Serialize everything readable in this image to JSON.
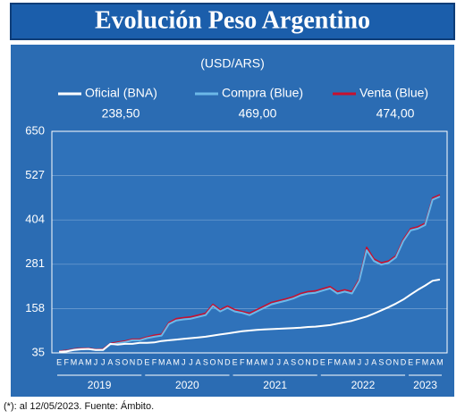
{
  "chart_data": {
    "type": "line",
    "title": "Evolución Peso Argentino",
    "subtitle": "(USD/ARS)",
    "footnote": "(*): al 12/05/2023. Fuente: Ámbito.",
    "periods": [
      {
        "year": "2019",
        "months": [
          "E",
          "F",
          "M",
          "A",
          "M",
          "J",
          "J",
          "A",
          "S",
          "O",
          "N",
          "D"
        ]
      },
      {
        "year": "2020",
        "months": [
          "E",
          "F",
          "M",
          "A",
          "M",
          "J",
          "J",
          "A",
          "S",
          "O",
          "N",
          "D"
        ]
      },
      {
        "year": "2021",
        "months": [
          "E",
          "F",
          "M",
          "A",
          "M",
          "J",
          "J",
          "A",
          "S",
          "O",
          "N",
          "D"
        ]
      },
      {
        "year": "2022",
        "months": [
          "E",
          "F",
          "M",
          "A",
          "M",
          "J",
          "J",
          "A",
          "S",
          "O",
          "N",
          "D"
        ]
      },
      {
        "year": "2023",
        "months": [
          "E",
          "F",
          "M",
          "A",
          "M"
        ]
      }
    ],
    "series": [
      {
        "name": "Oficial (BNA)",
        "latest": "238,50",
        "color": "#ffffff",
        "values": [
          38,
          39,
          43,
          45,
          46,
          43,
          43,
          60,
          58,
          60,
          60,
          63,
          63,
          64,
          68,
          70,
          72,
          74,
          76,
          78,
          80,
          83,
          86,
          89,
          92,
          95,
          97,
          99,
          100,
          101,
          102,
          103,
          104,
          105,
          107,
          108,
          110,
          112,
          116,
          120,
          124,
          130,
          136,
          144,
          153,
          162,
          172,
          183,
          197,
          210,
          222,
          235,
          238.5
        ]
      },
      {
        "name": "Compra (Blue)",
        "latest": "469,00",
        "color": "#6cb8e8",
        "values": [
          38,
          40,
          44,
          46,
          46,
          43,
          44,
          58,
          62,
          65,
          70,
          70,
          76,
          80,
          83,
          115,
          125,
          128,
          130,
          135,
          140,
          165,
          150,
          160,
          150,
          146,
          140,
          150,
          160,
          170,
          175,
          180,
          186,
          195,
          200,
          202,
          208,
          214,
          200,
          205,
          200,
          235,
          320,
          290,
          280,
          285,
          300,
          345,
          375,
          380,
          390,
          460,
          469
        ]
      },
      {
        "name": "Venta (Blue)",
        "latest": "474,00",
        "color": "#c8102e",
        "values": [
          40,
          42,
          46,
          48,
          48,
          45,
          46,
          61,
          65,
          68,
          73,
          73,
          79,
          84,
          87,
          119,
          130,
          133,
          135,
          140,
          145,
          170,
          155,
          165,
          155,
          150,
          145,
          155,
          165,
          175,
          180,
          185,
          191,
          200,
          205,
          207,
          213,
          219,
          205,
          210,
          205,
          240,
          328,
          296,
          285,
          290,
          305,
          350,
          380,
          385,
          395,
          465,
          474
        ]
      }
    ],
    "ylim": [
      35,
      650
    ],
    "yticks": [
      35,
      158,
      281,
      404,
      527,
      650
    ],
    "grid": true
  }
}
